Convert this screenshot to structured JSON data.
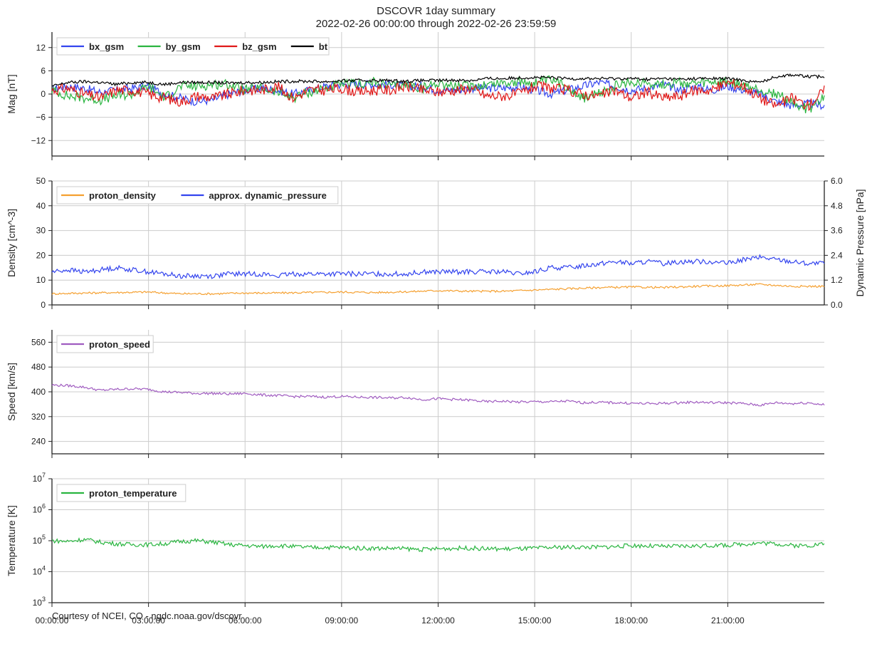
{
  "title": "DSCOVR 1day summary",
  "subtitle": "2022-02-26 00:00:00 through 2022-02-26 23:59:59",
  "footer": "Courtesy of NCEI, CO - ngdc.noaa.gov/dscovr",
  "colors": {
    "bx_gsm": "#3344ee",
    "by_gsm": "#2ab540",
    "bz_gsm": "#e01818",
    "bt": "#000000",
    "proton_density": "#f5a030",
    "dynamic_pressure": "#3344ee",
    "proton_speed": "#a05cc0",
    "proton_temperature": "#2ab540",
    "grid": "#cccccc"
  },
  "chart_data": [
    {
      "type": "line",
      "id": "mag",
      "ylabel": "Mag   [nT]",
      "ylim": [
        -16,
        16
      ],
      "yticks": [
        12,
        6,
        0,
        -6,
        -12
      ],
      "ytick_labels": [
        "12",
        "6",
        "0",
        "−6",
        "−12"
      ],
      "xlim": [
        0,
        24
      ],
      "legend": "top-left",
      "series": [
        {
          "name": "bx_gsm",
          "x": [
            0,
            0.5,
            1,
            1.5,
            2,
            2.5,
            3,
            3.5,
            4,
            4.5,
            5,
            5.5,
            6,
            6.5,
            7,
            7.5,
            8,
            8.5,
            9,
            9.5,
            10,
            10.5,
            11,
            11.5,
            12,
            12.5,
            13,
            13.5,
            14,
            14.5,
            15,
            15.5,
            16,
            16.5,
            17,
            17.5,
            18,
            18.5,
            19,
            19.5,
            20,
            20.5,
            21,
            21.5,
            22,
            22.5,
            23,
            23.5,
            24
          ],
          "y": [
            1.2,
            2,
            1.5,
            0.5,
            1,
            1.5,
            2,
            0,
            -1,
            -2,
            -1.5,
            0,
            1,
            1.5,
            1,
            0,
            1,
            2,
            2.5,
            2.5,
            2.5,
            2.5,
            2,
            2,
            1,
            1,
            1.5,
            1.5,
            1.5,
            2,
            1,
            0,
            1,
            2,
            3,
            2,
            1,
            1.5,
            2.5,
            1,
            2,
            1,
            2,
            1,
            0,
            -2,
            -3,
            -2.5,
            -3
          ]
        },
        {
          "name": "by_gsm",
          "x": [
            0,
            0.5,
            1,
            1.5,
            2,
            2.5,
            3,
            3.5,
            4,
            4.5,
            5,
            5.5,
            6,
            6.5,
            7,
            7.5,
            8,
            8.5,
            9,
            9.5,
            10,
            10.5,
            11,
            11.5,
            12,
            12.5,
            13,
            13.5,
            14,
            14.5,
            15,
            15.5,
            16,
            16.5,
            17,
            17.5,
            18,
            18.5,
            19,
            19.5,
            20,
            20.5,
            21,
            21.5,
            22,
            22.5,
            23,
            23.5,
            24
          ],
          "y": [
            1,
            -0.5,
            -1,
            -1.5,
            -0.5,
            0,
            2,
            -1,
            2,
            2,
            2.5,
            2.5,
            1,
            1.5,
            0.5,
            -1,
            0.5,
            1.5,
            2.5,
            2.5,
            3,
            2,
            2.5,
            1.5,
            3,
            2,
            2,
            2.5,
            3,
            3,
            3,
            3.5,
            2,
            -1,
            0,
            2,
            3,
            3,
            2.5,
            3,
            2.5,
            3,
            3,
            2,
            1,
            0,
            -2,
            -4,
            -1
          ]
        },
        {
          "name": "bz_gsm",
          "x": [
            0,
            0.5,
            1,
            1.5,
            2,
            2.5,
            3,
            3.5,
            4,
            4.5,
            5,
            5.5,
            6,
            6.5,
            7,
            7.5,
            8,
            8.5,
            9,
            9.5,
            10,
            10.5,
            11,
            11.5,
            12,
            12.5,
            13,
            13.5,
            14,
            14.5,
            15,
            15.5,
            16,
            16.5,
            17,
            17.5,
            18,
            18.5,
            19,
            19.5,
            20,
            20.5,
            21,
            21.5,
            22,
            22.5,
            23,
            23.5,
            24
          ],
          "y": [
            1,
            1.5,
            0,
            -1,
            1,
            1,
            0,
            -1,
            -2,
            -0.5,
            -1,
            0,
            1,
            1,
            2,
            -1,
            1,
            1,
            1.5,
            0.5,
            1,
            1,
            2,
            1,
            0.5,
            1,
            1.5,
            -0.5,
            -0.5,
            0,
            2,
            1.5,
            1,
            0,
            -0.5,
            1,
            -1,
            0.5,
            -1,
            -0.5,
            1,
            1,
            3,
            2,
            -1,
            -3,
            -1,
            -3,
            1
          ]
        },
        {
          "name": "bt",
          "x": [
            0,
            0.5,
            1,
            1.5,
            2,
            2.5,
            3,
            3.5,
            4,
            4.5,
            5,
            5.5,
            6,
            6.5,
            7,
            7.5,
            8,
            8.5,
            9,
            9.5,
            10,
            10.5,
            11,
            11.5,
            12,
            12.5,
            13,
            13.5,
            14,
            14.5,
            15,
            15.5,
            16,
            16.5,
            17,
            17.5,
            18,
            18.5,
            19,
            19.5,
            20,
            20.5,
            21,
            21.5,
            22,
            22.5,
            23,
            23.5,
            24
          ],
          "y": [
            2,
            3,
            3.2,
            3,
            2.5,
            3,
            3,
            2.5,
            3,
            3,
            3,
            2.8,
            3,
            3,
            3.2,
            3.3,
            3.3,
            3.2,
            3.4,
            3.5,
            3.5,
            3.5,
            3.3,
            3.5,
            3.5,
            3.6,
            3.5,
            4,
            4,
            4.2,
            4.3,
            4.2,
            4,
            4,
            4,
            4,
            4,
            3.8,
            4,
            3.8,
            4,
            4,
            4,
            3.5,
            3,
            4.5,
            5,
            4.5,
            4.5
          ]
        }
      ]
    },
    {
      "type": "line",
      "id": "density",
      "ylabel": "Density   [cm^-3]",
      "ylim": [
        0,
        50
      ],
      "yticks": [
        0,
        10,
        20,
        30,
        40,
        50
      ],
      "y2label": "Dynamic Pressure  [nPa]",
      "y2lim": [
        0,
        6
      ],
      "y2ticks": [
        0,
        1.2,
        2.4,
        3.6,
        4.8,
        6
      ],
      "y2tick_labels": [
        "0.0",
        "1.2",
        "2.4",
        "3.6",
        "4.8",
        "6.0"
      ],
      "xlim": [
        0,
        24
      ],
      "legend": "top-left",
      "series": [
        {
          "name": "proton_density",
          "axis": "left",
          "x": [
            0,
            1,
            2,
            3,
            4,
            5,
            6,
            7,
            8,
            9,
            10,
            11,
            12,
            13,
            14,
            15,
            16,
            17,
            18,
            19,
            20,
            21,
            22,
            23,
            24
          ],
          "y": [
            4.5,
            4.8,
            5,
            5.2,
            4.5,
            4.5,
            4.8,
            4.8,
            5,
            5.2,
            5,
            5.3,
            5.8,
            5.5,
            5.5,
            6,
            6.5,
            7,
            7.2,
            7,
            7.5,
            7.8,
            8.3,
            7.5,
            7.5
          ]
        },
        {
          "name": "approx. dynamic_pressure",
          "axis": "right",
          "x": [
            0,
            0.5,
            1,
            1.5,
            2,
            2.5,
            3,
            3.5,
            4,
            4.5,
            5,
            5.5,
            6,
            6.5,
            7,
            7.5,
            8,
            8.5,
            9,
            9.5,
            10,
            10.5,
            11,
            11.5,
            12,
            12.5,
            13,
            13.5,
            14,
            14.5,
            15,
            15.5,
            16,
            16.5,
            17,
            17.5,
            18,
            18.5,
            19,
            19.5,
            20,
            20.5,
            21,
            21.5,
            22,
            22.5,
            23,
            23.5,
            24
          ],
          "y": [
            1.6,
            1.7,
            1.6,
            1.7,
            1.8,
            1.7,
            1.6,
            1.5,
            1.4,
            1.4,
            1.4,
            1.5,
            1.5,
            1.5,
            1.4,
            1.5,
            1.5,
            1.5,
            1.5,
            1.5,
            1.5,
            1.5,
            1.5,
            1.6,
            1.6,
            1.6,
            1.6,
            1.6,
            1.6,
            1.5,
            1.6,
            1.8,
            1.8,
            1.9,
            2.0,
            2.1,
            2.0,
            2.1,
            2.0,
            2.1,
            2.1,
            2.1,
            2.0,
            2.2,
            2.3,
            2.2,
            2.1,
            2.0,
            2.0
          ]
        }
      ]
    },
    {
      "type": "line",
      "id": "speed",
      "ylabel": "Speed   [km/s]",
      "ylim": [
        200,
        600
      ],
      "yticks": [
        240,
        320,
        400,
        480,
        560
      ],
      "xlim": [
        0,
        24
      ],
      "legend": "top-left",
      "series": [
        {
          "name": "proton_speed",
          "x": [
            0,
            0.5,
            1,
            1.5,
            2,
            2.5,
            3,
            3.5,
            4,
            4.5,
            5,
            5.5,
            6,
            6.5,
            7,
            7.5,
            8,
            8.5,
            9,
            9.5,
            10,
            10.5,
            11,
            11.5,
            12,
            12.5,
            13,
            13.5,
            14,
            14.5,
            15,
            15.5,
            16,
            16.5,
            17,
            17.5,
            18,
            18.5,
            19,
            19.5,
            20,
            20.5,
            21,
            21.5,
            22,
            22.5,
            23,
            23.5,
            24
          ],
          "y": [
            422,
            420,
            415,
            405,
            408,
            410,
            408,
            400,
            398,
            395,
            395,
            393,
            395,
            390,
            388,
            385,
            385,
            383,
            385,
            383,
            382,
            380,
            382,
            375,
            378,
            375,
            373,
            368,
            370,
            367,
            368,
            368,
            370,
            365,
            366,
            365,
            363,
            362,
            363,
            365,
            367,
            365,
            365,
            362,
            357,
            365,
            362,
            365,
            358
          ]
        }
      ]
    },
    {
      "type": "line",
      "id": "temperature",
      "ylabel": "Temperature   [K]",
      "yscale": "log",
      "ylim": [
        1000,
        10000000
      ],
      "yticks": [
        1000,
        10000,
        100000,
        1000000,
        10000000
      ],
      "ytick_labels": [
        {
          "base": "10",
          "exp": "3"
        },
        {
          "base": "10",
          "exp": "4"
        },
        {
          "base": "10",
          "exp": "5"
        },
        {
          "base": "10",
          "exp": "6"
        },
        {
          "base": "10",
          "exp": "7"
        }
      ],
      "xlim": [
        0,
        24
      ],
      "xticks": [
        0,
        3,
        6,
        9,
        12,
        15,
        18,
        21
      ],
      "xtick_labels": [
        "00:00:00",
        "03:00:00",
        "06:00:00",
        "09:00:00",
        "12:00:00",
        "15:00:00",
        "18:00:00",
        "21:00:00"
      ],
      "legend": "top-left",
      "series": [
        {
          "name": "proton_temperature",
          "x": [
            0,
            0.5,
            1,
            1.5,
            2,
            2.5,
            3,
            3.5,
            4,
            4.5,
            5,
            5.5,
            6,
            6.5,
            7,
            7.5,
            8,
            8.5,
            9,
            9.5,
            10,
            10.5,
            11,
            11.5,
            12,
            12.5,
            13,
            13.5,
            14,
            14.5,
            15,
            15.5,
            16,
            16.5,
            17,
            17.5,
            18,
            18.5,
            19,
            19.5,
            20,
            20.5,
            21,
            21.5,
            22,
            22.5,
            23,
            23.5,
            24
          ],
          "y": [
            100000,
            95000,
            110000,
            90000,
            80000,
            75000,
            75000,
            80000,
            95000,
            100000,
            90000,
            75000,
            70000,
            65000,
            70000,
            65000,
            60000,
            62000,
            60000,
            58000,
            57000,
            57000,
            55000,
            52000,
            55000,
            57000,
            58000,
            55000,
            54000,
            55000,
            57000,
            60000,
            62000,
            62000,
            62000,
            65000,
            70000,
            68000,
            65000,
            66000,
            68000,
            70000,
            72000,
            78000,
            85000,
            80000,
            70000,
            70000,
            80000
          ]
        }
      ]
    }
  ]
}
